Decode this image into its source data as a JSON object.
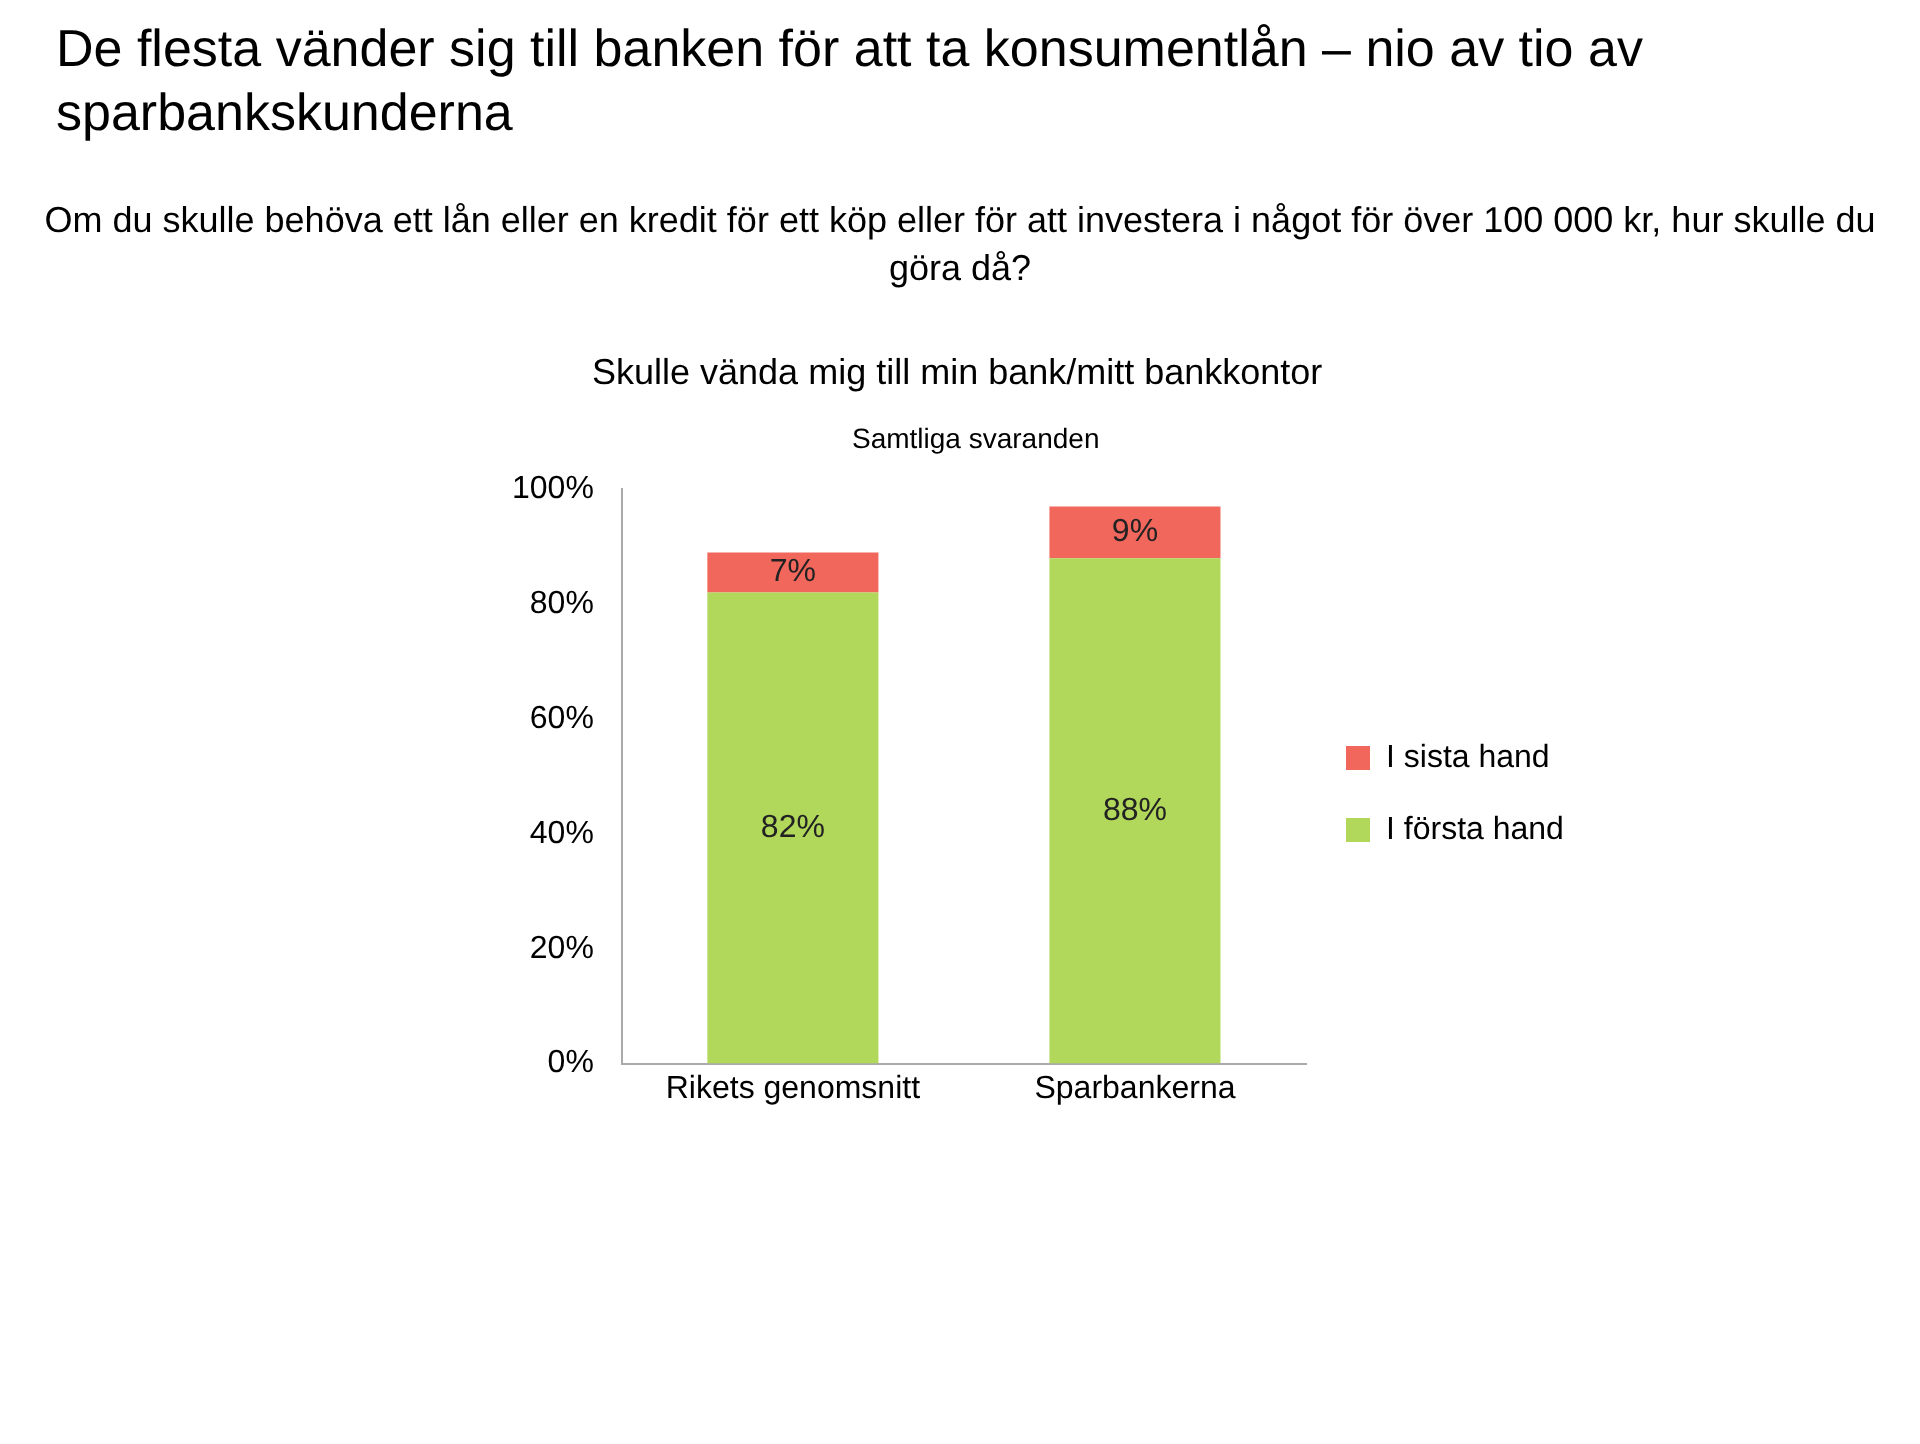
{
  "chart_data": {
    "type": "bar",
    "title": "De flesta vänder sig till banken för att ta konsumentlån – nio av tio av sparbankskunderna",
    "subtitle": "Om du skulle behöva ett lån eller en kredit för ett köp eller för att investera i något för över 100 000 kr, hur skulle du göra då?",
    "annotations": [
      "Skulle vända mig till min bank/mitt bankkontor",
      "Samtliga svaranden"
    ],
    "categories": [
      "Rikets genomsnitt",
      "Sparbankerna"
    ],
    "series": [
      {
        "name": "I första hand",
        "color": "#b1d75b",
        "values": [
          82,
          88
        ],
        "value_labels": [
          "82%",
          "88%"
        ]
      },
      {
        "name": "I sista hand",
        "color": "#f2675c",
        "values": [
          7,
          9
        ],
        "value_labels": [
          "7%",
          "9%"
        ]
      }
    ],
    "stacked": true,
    "grid": false,
    "legend": "right",
    "ylim": [
      0,
      100
    ],
    "yticks": [
      {
        "value": 0,
        "label": "0%"
      },
      {
        "value": 20,
        "label": "20%"
      },
      {
        "value": 40,
        "label": "40%"
      },
      {
        "value": 60,
        "label": "60%"
      },
      {
        "value": 80,
        "label": "80%"
      },
      {
        "value": 100,
        "label": "100%"
      }
    ]
  }
}
